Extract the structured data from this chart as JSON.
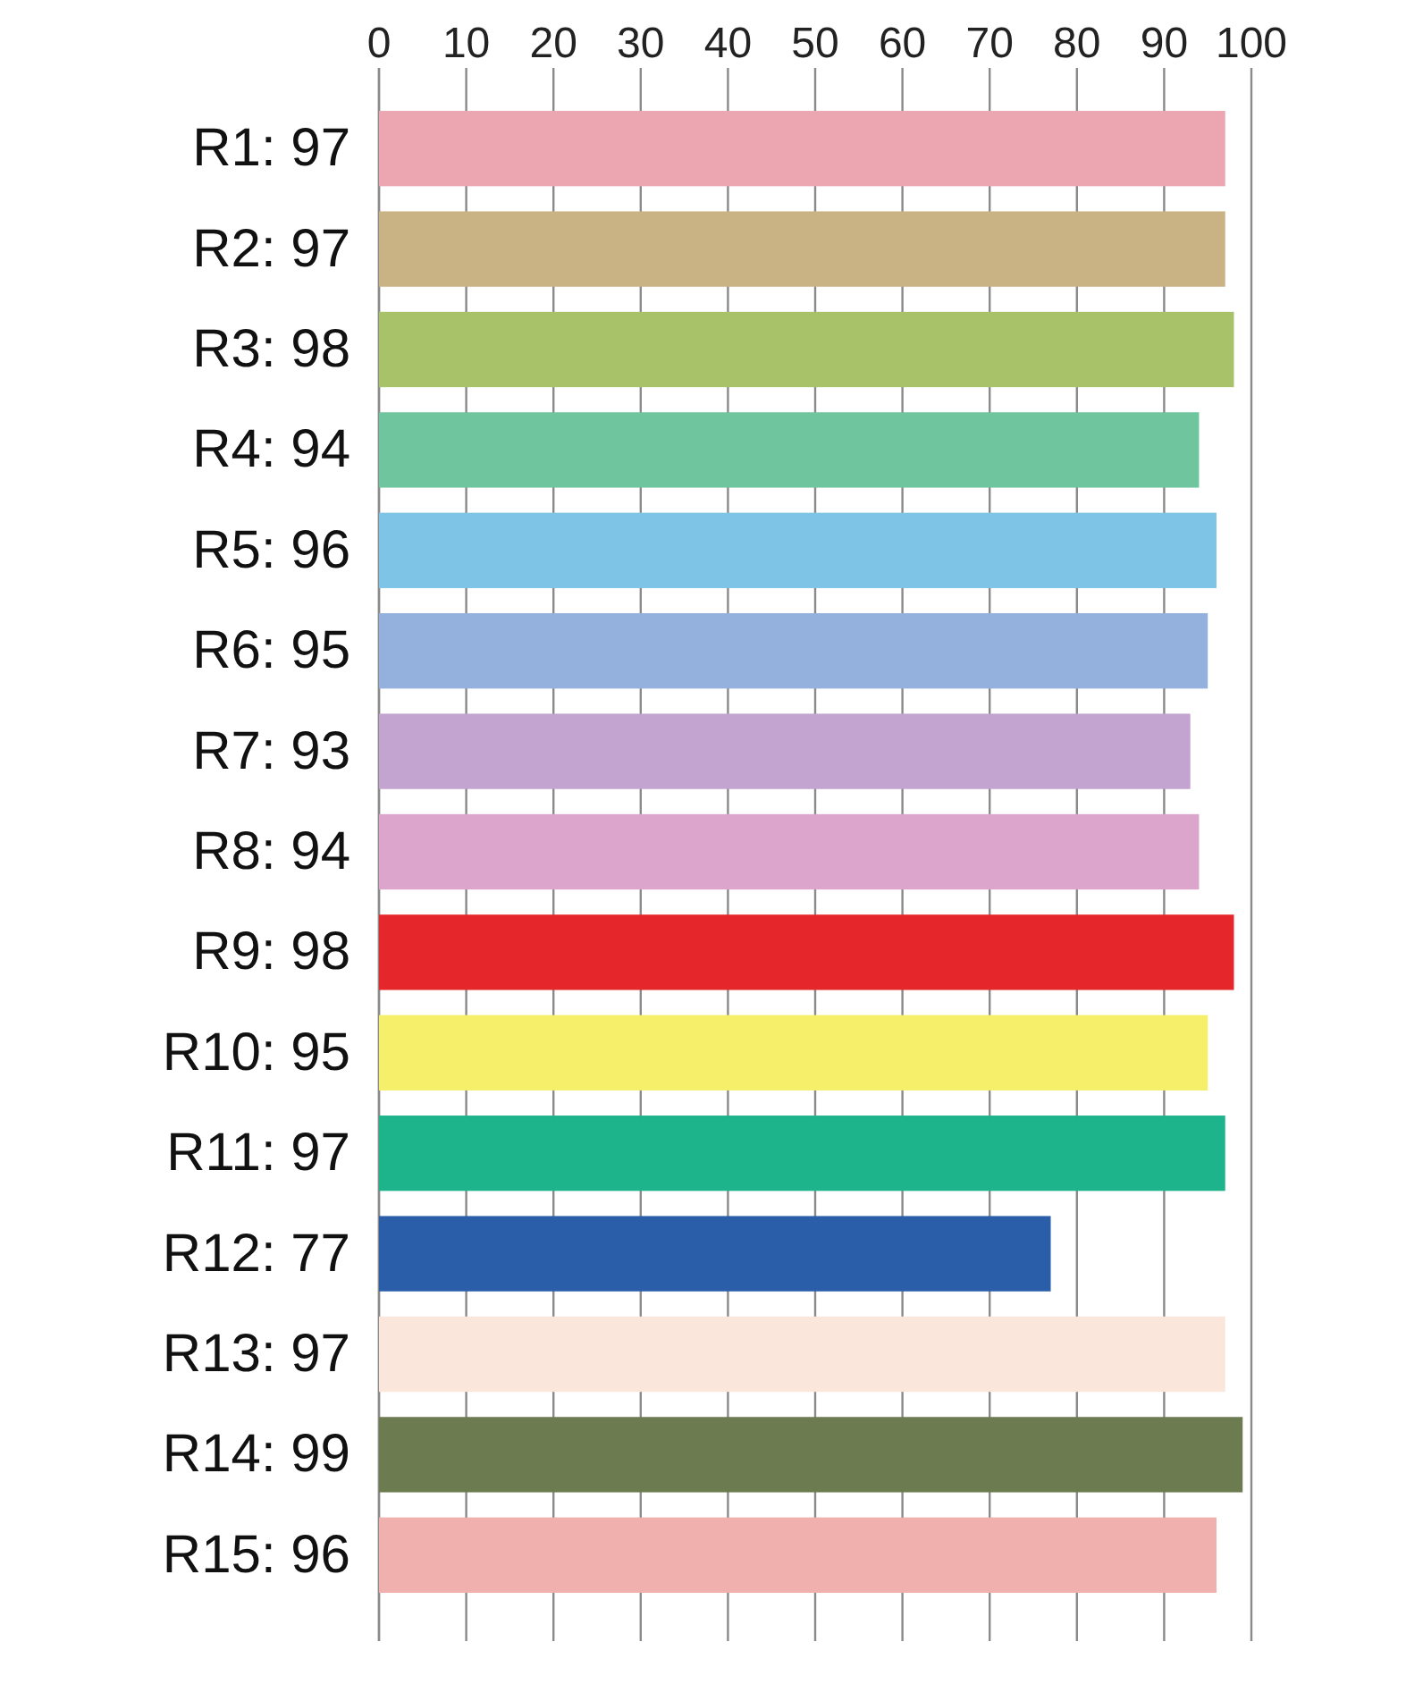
{
  "chart_data": {
    "type": "bar",
    "orientation": "horizontal",
    "categories": [
      "R1: 97",
      "R2: 97",
      "R3: 98",
      "R4: 94",
      "R5: 96",
      "R6: 95",
      "R7: 93",
      "R8: 94",
      "R9: 98",
      "R10: 95",
      "R11: 97",
      "R12: 77",
      "R13: 97",
      "R14: 99",
      "R15: 96"
    ],
    "values": [
      97,
      97,
      98,
      94,
      96,
      95,
      93,
      94,
      98,
      95,
      97,
      77,
      97,
      99,
      96
    ],
    "colors": [
      "#eca6b2",
      "#c9b284",
      "#a8c26a",
      "#6fc59d",
      "#7dc4e6",
      "#93b1dc",
      "#c3a3cf",
      "#dca6cc",
      "#e5262b",
      "#f5ef6a",
      "#1db38b",
      "#2a5ea9",
      "#fbe6dc",
      "#6d7b50",
      "#efb0ae"
    ],
    "xlim": [
      0,
      100
    ],
    "xticks": [
      0,
      10,
      20,
      30,
      40,
      50,
      60,
      70,
      80,
      90,
      100
    ],
    "grid": "x"
  }
}
